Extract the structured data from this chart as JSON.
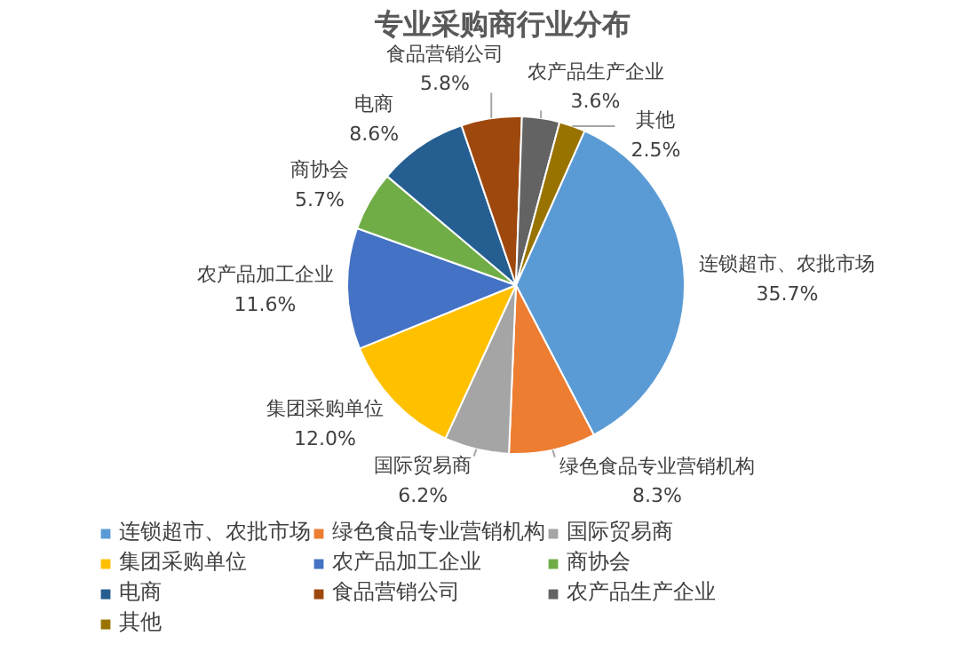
{
  "chart_data": {
    "type": "pie",
    "title": "专业采购商行业分布",
    "categories": [
      "连锁超市、农批市场",
      "绿色食品专业营销机构",
      "国际贸易商",
      "集团采购单位",
      "农产品加工企业",
      "商协会",
      "电商",
      "食品营销公司",
      "农产品生产企业",
      "其他"
    ],
    "values": [
      35.7,
      8.3,
      6.2,
      12.0,
      11.6,
      5.7,
      8.6,
      5.8,
      3.6,
      2.5
    ],
    "value_labels": [
      "35.7%",
      "8.3%",
      "6.2%",
      "12.0%",
      "11.6%",
      "5.7%",
      "8.6%",
      "5.8%",
      "3.6%",
      "2.5%"
    ],
    "colors": [
      "#5b9bd5",
      "#ed7d31",
      "#a5a5a5",
      "#ffc000",
      "#4472c4",
      "#70ad47",
      "#255e91",
      "#9e480e",
      "#636363",
      "#997300"
    ],
    "legend": "bottom"
  }
}
